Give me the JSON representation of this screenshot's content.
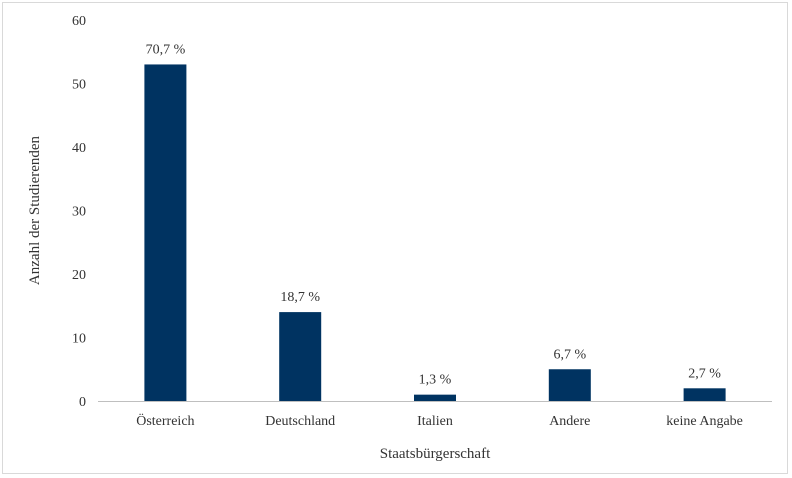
{
  "chart_data": {
    "type": "bar",
    "categories": [
      "Österreich",
      "Deutschland",
      "Italien",
      "Andere",
      "keine Angabe"
    ],
    "values": [
      53,
      14,
      1,
      5,
      2
    ],
    "data_labels": [
      "70,7 %",
      "18,7 %",
      "1,3 %",
      "6,7 %",
      "2,7 %"
    ],
    "xlabel": "Staatsbürgerschaft",
    "ylabel": "Anzahl der Studierenden",
    "ylim": [
      0,
      60
    ],
    "yticks": [
      0,
      10,
      20,
      30,
      40,
      50,
      60
    ],
    "grid": false,
    "legend": "none",
    "bar_color": "#003361",
    "axis_color": "#bfbfbf"
  }
}
